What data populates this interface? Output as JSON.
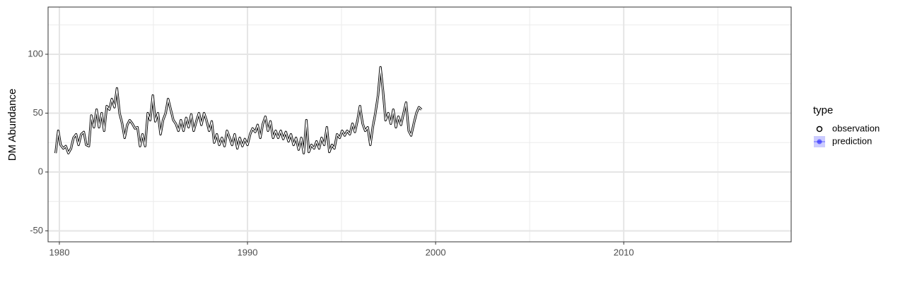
{
  "chart_data": {
    "type": "line",
    "y_label": "DM Abundance",
    "x": [
      1979.8,
      1979.94,
      1980.07,
      1980.21,
      1980.34,
      1980.48,
      1980.62,
      1980.75,
      1980.89,
      1981.02,
      1981.16,
      1981.3,
      1981.43,
      1981.57,
      1981.7,
      1981.84,
      1981.98,
      1982.11,
      1982.25,
      1982.38,
      1982.52,
      1982.66,
      1982.79,
      1982.93,
      1983.06,
      1983.2,
      1983.34,
      1983.47,
      1983.61,
      1983.74,
      1983.88,
      1984.02,
      1984.15,
      1984.29,
      1984.42,
      1984.56,
      1984.7,
      1984.83,
      1984.97,
      1985.1,
      1985.24,
      1985.38,
      1985.51,
      1985.65,
      1985.78,
      1985.92,
      1986.06,
      1986.19,
      1986.33,
      1986.46,
      1986.6,
      1986.74,
      1986.87,
      1987.01,
      1987.14,
      1987.28,
      1987.42,
      1987.55,
      1987.69,
      1987.82,
      1987.96,
      1988.1,
      1988.23,
      1988.37,
      1988.5,
      1988.64,
      1988.78,
      1988.91,
      1989.05,
      1989.18,
      1989.32,
      1989.46,
      1989.59,
      1989.73,
      1989.86,
      1990.0,
      1990.14,
      1990.27,
      1990.41,
      1990.54,
      1990.68,
      1990.82,
      1990.95,
      1991.09,
      1991.22,
      1991.36,
      1991.5,
      1991.63,
      1991.77,
      1991.9,
      1992.04,
      1992.18,
      1992.31,
      1992.45,
      1992.58,
      1992.72,
      1992.86,
      1992.99,
      1993.13,
      1993.26,
      1993.4,
      1993.54,
      1993.67,
      1993.81,
      1993.94,
      1994.08,
      1994.22,
      1994.35,
      1994.49,
      1994.62,
      1994.76,
      1994.9,
      1995.03,
      1995.17,
      1995.3,
      1995.44,
      1995.58,
      1995.71,
      1995.85,
      1995.98,
      1996.12,
      1996.26,
      1996.39,
      1996.53,
      1996.66,
      1996.8,
      1996.94,
      1997.07,
      1997.21,
      1997.34,
      1997.48,
      1997.62,
      1997.75,
      1997.89,
      1998.02,
      1998.16,
      1998.3,
      1998.43,
      1998.57,
      1998.7,
      1998.84,
      1998.98,
      1999.11,
      1999.25
    ],
    "series": [
      {
        "name": "observation",
        "color": "#000000",
        "values": [
          16,
          35,
          23,
          20,
          22,
          16,
          20,
          29,
          32,
          23,
          32,
          34,
          23,
          22,
          48,
          38,
          53,
          38,
          50,
          35,
          56,
          53,
          62,
          55,
          71,
          50,
          41,
          29,
          40,
          44,
          41,
          37,
          38,
          22,
          32,
          22,
          50,
          44,
          65,
          43,
          50,
          32,
          44,
          50,
          62,
          53,
          44,
          41,
          35,
          44,
          35,
          46,
          38,
          49,
          35,
          43,
          50,
          40,
          50,
          44,
          35,
          43,
          25,
          32,
          23,
          29,
          22,
          35,
          29,
          23,
          32,
          20,
          29,
          22,
          28,
          23,
          32,
          37,
          34,
          40,
          29,
          41,
          47,
          35,
          43,
          29,
          35,
          29,
          35,
          28,
          34,
          26,
          32,
          23,
          29,
          19,
          29,
          16,
          44,
          17,
          23,
          20,
          26,
          20,
          29,
          23,
          38,
          17,
          23,
          20,
          32,
          29,
          35,
          31,
          35,
          32,
          41,
          34,
          44,
          56,
          41,
          35,
          38,
          23,
          38,
          50,
          65,
          89,
          68,
          44,
          50,
          41,
          53,
          38,
          47,
          40,
          50,
          59,
          35,
          31,
          41,
          50,
          55,
          53
        ]
      }
    ],
    "legend": {
      "title": "type",
      "items": [
        {
          "name": "observation",
          "color": "#000000"
        },
        {
          "name": "prediction",
          "color": "#0000ff"
        }
      ]
    },
    "xlim": [
      1979.4,
      2018.9
    ],
    "xticks": [
      1980,
      1990,
      2000,
      2010
    ],
    "ylim": [
      -59.3,
      140.1
    ],
    "yticks": [
      -50,
      0,
      50,
      100
    ],
    "x_minor_grid": [
      1985,
      1995,
      2005,
      2015
    ],
    "y_minor_grid": [
      -25,
      25,
      75,
      125
    ],
    "grid": true
  }
}
